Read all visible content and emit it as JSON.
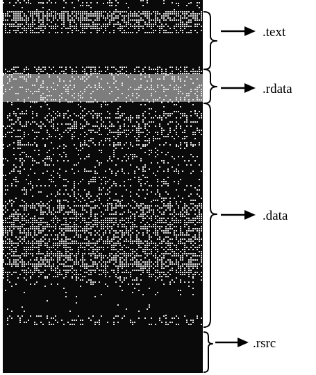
{
  "sections": [
    {
      "id": "text",
      "label": ".text"
    },
    {
      "id": "rdata",
      "label": ".rdata"
    },
    {
      "id": "data",
      "label": ".data"
    },
    {
      "id": "rsrc",
      "label": ".rsrc"
    }
  ],
  "colors": {
    "background": "#ffffff",
    "strip_base": "#0a0a0a",
    "noise": "#e6e6e6",
    "rdata_band": "#7d7d7d",
    "ink": "#000000"
  }
}
